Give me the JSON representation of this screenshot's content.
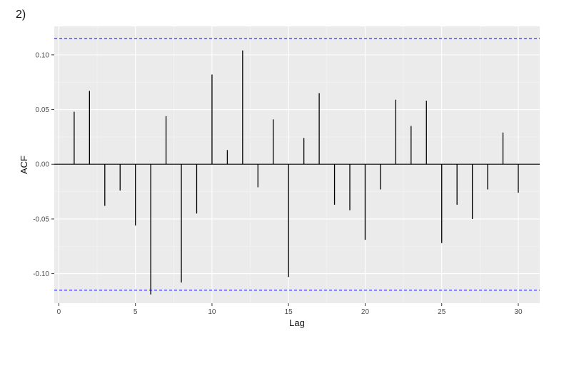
{
  "figure": {
    "label": "2)"
  },
  "chart_data": {
    "type": "bar",
    "title": "",
    "xlabel": "Lag",
    "ylabel": "ACF",
    "xlim": [
      -0.3,
      31.4
    ],
    "ylim": [
      -0.127,
      0.126
    ],
    "x_ticks": [
      0,
      5,
      10,
      15,
      20,
      25,
      30
    ],
    "x_tick_labels": [
      "0",
      "5",
      "10",
      "15",
      "20",
      "25",
      "30"
    ],
    "y_ticks": [
      -0.1,
      -0.05,
      0.0,
      0.05,
      0.1
    ],
    "y_tick_labels": [
      "-0.10",
      "-0.05",
      "0.00",
      "0.05",
      "0.10"
    ],
    "grid": true,
    "confidence_band": {
      "value": 0.115,
      "color": "#3333ff",
      "style": "dashed"
    },
    "background_color": "#ebebeb",
    "bar_color": "#000000",
    "lags": [
      1,
      2,
      3,
      4,
      5,
      6,
      7,
      8,
      9,
      10,
      11,
      12,
      13,
      14,
      15,
      16,
      17,
      18,
      19,
      20,
      21,
      22,
      23,
      24,
      25,
      26,
      27,
      28,
      29,
      30
    ],
    "acf": [
      0.048,
      0.067,
      -0.038,
      -0.024,
      -0.056,
      -0.119,
      0.044,
      -0.108,
      -0.045,
      0.082,
      0.013,
      0.104,
      -0.021,
      0.041,
      -0.103,
      0.024,
      0.065,
      -0.037,
      -0.042,
      -0.069,
      -0.023,
      0.059,
      0.035,
      0.058,
      -0.072,
      -0.037,
      -0.05,
      -0.023,
      0.029,
      -0.026
    ]
  }
}
